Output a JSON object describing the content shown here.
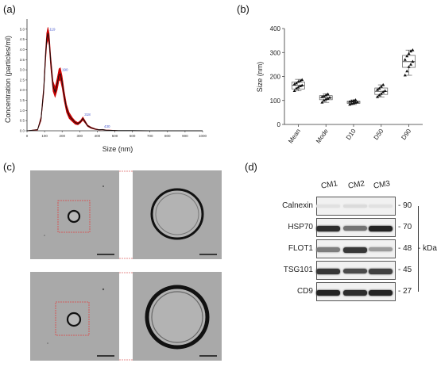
{
  "panels": {
    "a": "(a)",
    "b": "(b)",
    "c": "(c)",
    "d": "(d)"
  },
  "chart_data": [
    {
      "type": "line",
      "panel": "a",
      "xlabel": "Size (nm)",
      "ylabel": "Concentration (particles/ml)",
      "xlim": [
        0,
        1000
      ],
      "ylim": [
        0,
        5.5
      ],
      "xticks": [
        0,
        100,
        200,
        300,
        400,
        500,
        600,
        700,
        800,
        900,
        1000
      ],
      "yticks": [
        0.0,
        0.5,
        1.0,
        1.5,
        2.0,
        2.5,
        3.0,
        3.5,
        4.0,
        4.5,
        5.0
      ],
      "peak_labels": [
        "119",
        "190",
        "318",
        "430"
      ],
      "series": [
        {
          "color": "#111111",
          "x": [
            0,
            60,
            80,
            95,
            105,
            112,
            119,
            126,
            135,
            148,
            160,
            172,
            182,
            190,
            200,
            212,
            225,
            240,
            258,
            275,
            290,
            305,
            318,
            330,
            345,
            365,
            390,
            410,
            430,
            450,
            480,
            520,
            600,
            700,
            800,
            900,
            1000
          ],
          "y": [
            0,
            0.05,
            0.6,
            2.0,
            3.6,
            4.5,
            4.8,
            4.5,
            3.4,
            2.2,
            1.9,
            2.3,
            2.75,
            2.8,
            2.4,
            1.7,
            1.1,
            0.75,
            0.55,
            0.4,
            0.35,
            0.45,
            0.6,
            0.45,
            0.25,
            0.15,
            0.08,
            0.05,
            0.06,
            0.03,
            0.02,
            0.01,
            0.01,
            0,
            0,
            0,
            0
          ]
        }
      ],
      "error_band_color": "#cc0000",
      "error_band_halfwidth": [
        0,
        0.02,
        0.1,
        0.2,
        0.3,
        0.3,
        0.3,
        0.3,
        0.3,
        0.25,
        0.25,
        0.3,
        0.3,
        0.3,
        0.3,
        0.25,
        0.2,
        0.15,
        0.1,
        0.08,
        0.06,
        0.06,
        0.08,
        0.06,
        0.04,
        0.03,
        0.02,
        0.01,
        0.01,
        0.01,
        0.01,
        0,
        0,
        0,
        0,
        0,
        0
      ]
    },
    {
      "type": "box",
      "panel": "b",
      "ylabel": "Size (nm)",
      "ylim": [
        0,
        400
      ],
      "yticks": [
        0,
        100,
        200,
        300,
        400
      ],
      "categories": [
        "Mean",
        "Mode",
        "D10",
        "D50",
        "D90"
      ],
      "boxes": [
        {
          "min": 140,
          "q1": 148,
          "median": 163,
          "q3": 177,
          "max": 188
        },
        {
          "min": 92,
          "q1": 103,
          "median": 112,
          "q3": 120,
          "max": 128
        },
        {
          "min": 83,
          "q1": 88,
          "median": 93,
          "q3": 97,
          "max": 102
        },
        {
          "min": 115,
          "q1": 125,
          "median": 138,
          "q3": 152,
          "max": 165
        },
        {
          "min": 205,
          "q1": 238,
          "median": 262,
          "q3": 288,
          "max": 310
        }
      ],
      "points": [
        [
          140,
          150,
          155,
          160,
          163,
          168,
          172,
          178,
          182,
          186
        ],
        [
          92,
          100,
          105,
          108,
          112,
          115,
          118,
          122,
          126
        ],
        [
          83,
          86,
          89,
          91,
          93,
          95,
          97,
          99,
          102
        ],
        [
          115,
          122,
          128,
          135,
          140,
          145,
          150,
          158,
          165
        ],
        [
          205,
          222,
          240,
          250,
          262,
          270,
          285,
          295,
          305,
          310
        ]
      ]
    }
  ],
  "blot": {
    "lanes": [
      "CM1",
      "CM2",
      "CM3"
    ],
    "rows": [
      {
        "label": "Calnexin",
        "kda": "90",
        "intensity": [
          0.05,
          0.08,
          0.05
        ]
      },
      {
        "label": "HSP70",
        "kda": "70",
        "intensity": [
          0.95,
          0.6,
          1.0
        ]
      },
      {
        "label": "FLOT1",
        "kda": "48",
        "intensity": [
          0.55,
          0.9,
          0.4
        ]
      },
      {
        "label": "TSG101",
        "kda": "45",
        "intensity": [
          0.9,
          0.8,
          0.85
        ]
      },
      {
        "label": "CD9",
        "kda": "27",
        "intensity": [
          1.0,
          0.95,
          1.0
        ]
      }
    ],
    "unit": "kDa"
  }
}
